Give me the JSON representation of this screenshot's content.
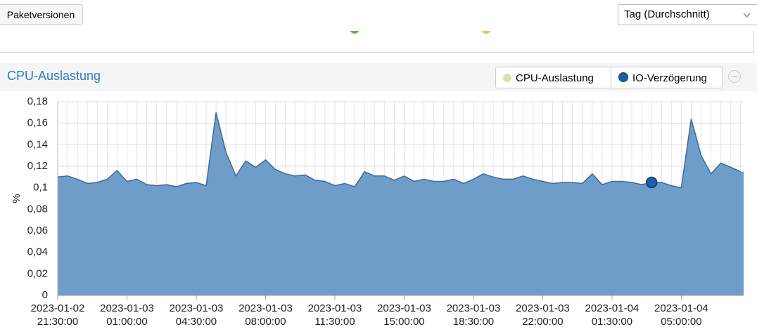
{
  "toolbar": {
    "button": "Paketversionen",
    "select": "Tag (Durchschnitt)"
  },
  "chart_data": {
    "type": "area",
    "title": "CPU-Auslastung",
    "y_label": "%",
    "categories": [
      "2023-01-02 21:30:00",
      null,
      null,
      null,
      null,
      null,
      null,
      "2023-01-03 01:00:00",
      null,
      null,
      null,
      null,
      null,
      null,
      "2023-01-03 04:30:00",
      null,
      null,
      null,
      null,
      null,
      null,
      "2023-01-03 08:00:00",
      null,
      null,
      null,
      null,
      null,
      null,
      "2023-01-03 11:30:00",
      null,
      null,
      null,
      null,
      null,
      null,
      "2023-01-03 15:00:00",
      null,
      null,
      null,
      null,
      null,
      null,
      "2023-01-03 18:30:00",
      null,
      null,
      null,
      null,
      null,
      null,
      "2023-01-03 22:00:00",
      null,
      null,
      null,
      null,
      null,
      null,
      "2023-01-04 01:30:00",
      null,
      null,
      null,
      null,
      null,
      null,
      "2023-01-04 05:00:00",
      null,
      null,
      null,
      null,
      null,
      null
    ],
    "series": [
      {
        "name": "CPU-Auslastung",
        "color": "#d6e2ad",
        "visible": false,
        "values": [
          null,
          null,
          null,
          null,
          null,
          null,
          null,
          null,
          null,
          null,
          null,
          null,
          null,
          null,
          null,
          null,
          null,
          null,
          null,
          null,
          null,
          null,
          null,
          null,
          null,
          null,
          null,
          null,
          null,
          null,
          null,
          null,
          null,
          null,
          null,
          null,
          null,
          null,
          null,
          null,
          null,
          null,
          null,
          null,
          null,
          null,
          null,
          null,
          null,
          null,
          null,
          null,
          null,
          null,
          null,
          null,
          null,
          null,
          null,
          null,
          null,
          null,
          null,
          null,
          null,
          null,
          null,
          null,
          null,
          null
        ]
      },
      {
        "name": "IO-Verzögerung",
        "color": "#1f5fa8",
        "visible": true,
        "values": [
          0.11,
          0.111,
          0.108,
          0.104,
          0.105,
          0.108,
          0.116,
          0.106,
          0.108,
          0.103,
          0.102,
          0.103,
          0.101,
          0.104,
          0.105,
          0.102,
          0.17,
          0.133,
          0.111,
          0.125,
          0.119,
          0.126,
          0.117,
          0.113,
          0.111,
          0.112,
          0.107,
          0.106,
          0.102,
          0.104,
          0.101,
          0.115,
          0.111,
          0.111,
          0.107,
          0.111,
          0.106,
          0.108,
          0.106,
          0.106,
          0.108,
          0.104,
          0.108,
          0.113,
          0.11,
          0.108,
          0.108,
          0.111,
          0.108,
          0.106,
          0.104,
          0.105,
          0.105,
          0.104,
          0.113,
          0.103,
          0.106,
          0.106,
          0.105,
          0.103,
          0.105,
          0.105,
          0.102,
          0.1,
          0.164,
          0.13,
          0.113,
          0.123,
          0.119,
          0.115
        ]
      }
    ],
    "highlighted_point": 60,
    "ylim": [
      0,
      0.18
    ],
    "yticks": [
      0,
      {
        "value": 0.02,
        "label": "0,02"
      },
      {
        "value": 0.04,
        "label": "0,04"
      },
      {
        "value": 0.06,
        "label": "0,06"
      },
      {
        "value": 0.08,
        "label": "0,08"
      },
      {
        "value": 0.1,
        "label": "0,1"
      },
      {
        "value": 0.12,
        "label": "0,12"
      },
      {
        "value": 0.14,
        "label": "0,14"
      },
      {
        "value": 0.16,
        "label": "0,16"
      },
      {
        "value": 0.18,
        "label": "0,18"
      }
    ],
    "grid": true
  }
}
